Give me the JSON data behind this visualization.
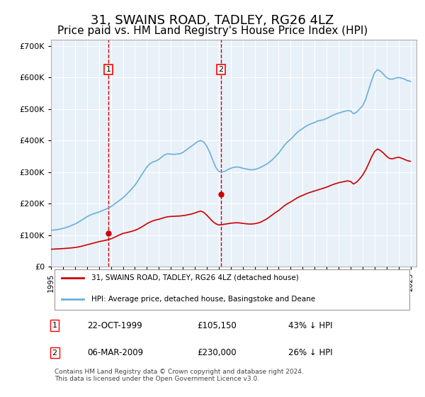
{
  "title": "31, SWAINS ROAD, TADLEY, RG26 4LZ",
  "subtitle": "Price paid vs. HM Land Registry's House Price Index (HPI)",
  "title_fontsize": 13,
  "subtitle_fontsize": 11,
  "background_color": "#ffffff",
  "plot_bg_color": "#e8f0f8",
  "grid_color": "#ffffff",
  "ylim": [
    0,
    720000
  ],
  "yticks": [
    0,
    100000,
    200000,
    300000,
    400000,
    500000,
    600000,
    700000
  ],
  "xlim_start": 1995.0,
  "xlim_end": 2025.5,
  "hpi_color": "#6ab0d8",
  "price_color": "#cc0000",
  "vline_color": "#cc0000",
  "legend_label_price": "31, SWAINS ROAD, TADLEY, RG26 4LZ (detached house)",
  "legend_label_hpi": "HPI: Average price, detached house, Basingstoke and Deane",
  "transaction1_date": "22-OCT-1999",
  "transaction1_price": "£105,150",
  "transaction1_pct": "43% ↓ HPI",
  "transaction1_year": 1999.8,
  "transaction1_value": 105150,
  "transaction2_date": "06-MAR-2009",
  "transaction2_price": "£230,000",
  "transaction2_pct": "26% ↓ HPI",
  "transaction2_year": 2009.17,
  "transaction2_value": 230000,
  "footer": "Contains HM Land Registry data © Crown copyright and database right 2024.\nThis data is licensed under the Open Government Licence v3.0.",
  "hpi_years": [
    1995,
    1995.25,
    1995.5,
    1995.75,
    1996,
    1996.25,
    1996.5,
    1996.75,
    1997,
    1997.25,
    1997.5,
    1997.75,
    1998,
    1998.25,
    1998.5,
    1998.75,
    1999,
    1999.25,
    1999.5,
    1999.75,
    2000,
    2000.25,
    2000.5,
    2000.75,
    2001,
    2001.25,
    2001.5,
    2001.75,
    2002,
    2002.25,
    2002.5,
    2002.75,
    2003,
    2003.25,
    2003.5,
    2003.75,
    2004,
    2004.25,
    2004.5,
    2004.75,
    2005,
    2005.25,
    2005.5,
    2005.75,
    2006,
    2006.25,
    2006.5,
    2006.75,
    2007,
    2007.25,
    2007.5,
    2007.75,
    2008,
    2008.25,
    2008.5,
    2008.75,
    2009,
    2009.25,
    2009.5,
    2009.75,
    2010,
    2010.25,
    2010.5,
    2010.75,
    2011,
    2011.25,
    2011.5,
    2011.75,
    2012,
    2012.25,
    2012.5,
    2012.75,
    2013,
    2013.25,
    2013.5,
    2013.75,
    2014,
    2014.25,
    2014.5,
    2014.75,
    2015,
    2015.25,
    2015.5,
    2015.75,
    2016,
    2016.25,
    2016.5,
    2016.75,
    2017,
    2017.25,
    2017.5,
    2017.75,
    2018,
    2018.25,
    2018.5,
    2018.75,
    2019,
    2019.25,
    2019.5,
    2019.75,
    2020,
    2020.25,
    2020.5,
    2020.75,
    2021,
    2021.25,
    2021.5,
    2021.75,
    2022,
    2022.25,
    2022.5,
    2022.75,
    2023,
    2023.25,
    2023.5,
    2023.75,
    2024,
    2024.25,
    2024.5,
    2024.75,
    2025
  ],
  "hpi_values": [
    115000,
    116000,
    117000,
    119000,
    121000,
    124000,
    127000,
    131000,
    135000,
    140000,
    146000,
    152000,
    158000,
    163000,
    167000,
    170000,
    173000,
    177000,
    181000,
    185000,
    190000,
    197000,
    204000,
    211000,
    218000,
    227000,
    237000,
    247000,
    258000,
    272000,
    287000,
    302000,
    316000,
    326000,
    332000,
    335000,
    340000,
    348000,
    355000,
    358000,
    357000,
    356000,
    357000,
    358000,
    362000,
    369000,
    376000,
    383000,
    390000,
    397000,
    400000,
    395000,
    382000,
    362000,
    338000,
    315000,
    302000,
    300000,
    302000,
    308000,
    312000,
    315000,
    316000,
    315000,
    312000,
    310000,
    308000,
    307000,
    308000,
    311000,
    315000,
    320000,
    325000,
    332000,
    340000,
    350000,
    360000,
    373000,
    386000,
    396000,
    404000,
    414000,
    424000,
    432000,
    438000,
    445000,
    450000,
    454000,
    457000,
    462000,
    464000,
    466000,
    470000,
    475000,
    480000,
    484000,
    487000,
    490000,
    493000,
    495000,
    494000,
    485000,
    490000,
    500000,
    510000,
    530000,
    560000,
    590000,
    615000,
    625000,
    620000,
    610000,
    600000,
    595000,
    595000,
    598000,
    600000,
    598000,
    595000,
    590000,
    588000
  ],
  "price_years": [
    1995,
    1995.25,
    1995.5,
    1995.75,
    1996,
    1996.25,
    1996.5,
    1996.75,
    1997,
    1997.25,
    1997.5,
    1997.75,
    1998,
    1998.25,
    1998.5,
    1998.75,
    1999,
    1999.25,
    1999.5,
    1999.75,
    2000,
    2000.25,
    2000.5,
    2000.75,
    2001,
    2001.25,
    2001.5,
    2001.75,
    2002,
    2002.25,
    2002.5,
    2002.75,
    2003,
    2003.25,
    2003.5,
    2003.75,
    2004,
    2004.25,
    2004.5,
    2004.75,
    2005,
    2005.25,
    2005.5,
    2005.75,
    2006,
    2006.25,
    2006.5,
    2006.75,
    2007,
    2007.25,
    2007.5,
    2007.75,
    2008,
    2008.25,
    2008.5,
    2008.75,
    2009,
    2009.25,
    2009.5,
    2009.75,
    2010,
    2010.25,
    2010.5,
    2010.75,
    2011,
    2011.25,
    2011.5,
    2011.75,
    2012,
    2012.25,
    2012.5,
    2012.75,
    2013,
    2013.25,
    2013.5,
    2013.75,
    2014,
    2014.25,
    2014.5,
    2014.75,
    2015,
    2015.25,
    2015.5,
    2015.75,
    2016,
    2016.25,
    2016.5,
    2016.75,
    2017,
    2017.25,
    2017.5,
    2017.75,
    2018,
    2018.25,
    2018.5,
    2018.75,
    2019,
    2019.25,
    2019.5,
    2019.75,
    2020,
    2020.25,
    2020.5,
    2020.75,
    2021,
    2021.25,
    2021.5,
    2021.75,
    2022,
    2022.25,
    2022.5,
    2022.75,
    2023,
    2023.25,
    2023.5,
    2023.75,
    2024,
    2024.25,
    2024.5,
    2024.75,
    2025
  ],
  "price_values": [
    55000,
    55500,
    56000,
    56500,
    57000,
    57800,
    58600,
    59400,
    60500,
    62000,
    64000,
    66500,
    69000,
    71500,
    74000,
    76500,
    79000,
    81000,
    83000,
    85000,
    88000,
    92000,
    96500,
    101000,
    105150,
    107000,
    109500,
    112000,
    115000,
    119000,
    124000,
    130000,
    136000,
    141000,
    145000,
    148000,
    150000,
    153000,
    156000,
    158000,
    159000,
    159500,
    160000,
    160500,
    161500,
    163000,
    165000,
    167000,
    170000,
    173500,
    176000,
    172000,
    163000,
    153000,
    143000,
    136000,
    132000,
    133000,
    134500,
    136000,
    137500,
    138500,
    139000,
    138500,
    137000,
    136000,
    135000,
    135000,
    136000,
    138000,
    141000,
    146000,
    151000,
    158000,
    165000,
    172000,
    178000,
    186000,
    194000,
    200000,
    205000,
    211000,
    217000,
    222000,
    226000,
    230000,
    234000,
    237000,
    240000,
    243000,
    246000,
    249000,
    252000,
    256000,
    260000,
    263000,
    266000,
    268000,
    270000,
    272000,
    270000,
    262000,
    268000,
    278000,
    290000,
    306000,
    326000,
    348000,
    365000,
    373000,
    368000,
    360000,
    350000,
    343000,
    342000,
    345000,
    347000,
    344000,
    340000,
    336000,
    334000
  ],
  "xtick_years": [
    1995,
    1996,
    1997,
    1998,
    1999,
    2000,
    2001,
    2002,
    2003,
    2004,
    2005,
    2006,
    2007,
    2008,
    2009,
    2010,
    2011,
    2012,
    2013,
    2014,
    2015,
    2016,
    2017,
    2018,
    2019,
    2020,
    2021,
    2022,
    2023,
    2024,
    2025
  ]
}
